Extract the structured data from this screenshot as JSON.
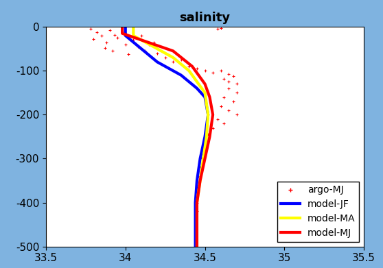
{
  "chart_data": {
    "type": "line",
    "title": "salinity",
    "xlim": [
      33.5,
      35.5
    ],
    "xticks": [
      33.5,
      34,
      34.5,
      35,
      35.5
    ],
    "ylim": [
      -500,
      0
    ],
    "yticks": [
      -500,
      -400,
      -300,
      -200,
      -100,
      0
    ],
    "grid": false,
    "legend": "lower right",
    "series": [
      {
        "name": "argo-MJ",
        "color": "#ff0000",
        "type": "scatter",
        "marker": "+",
        "x": [
          33.78,
          33.82,
          33.85,
          33.8,
          33.9,
          33.93,
          33.88,
          33.95,
          34.0,
          33.98,
          34.05,
          34.08,
          34.1,
          34.12,
          34.15,
          34.2,
          33.87,
          33.92,
          34.02,
          34.18,
          34.25,
          34.3,
          34.35,
          34.4,
          34.45,
          34.5,
          34.55,
          34.6,
          34.65,
          34.68,
          34.62,
          34.58,
          34.6,
          34.65,
          34.7,
          34.65,
          34.7,
          34.62,
          34.68,
          34.6,
          34.65,
          34.7,
          34.58,
          34.62,
          34.55,
          34.52,
          34.5,
          34.5,
          34.48,
          34.47,
          34.46,
          34.46,
          34.45,
          34.45,
          34.45,
          34.44,
          34.44,
          34.44,
          34.44
        ],
        "y": [
          -5,
          -12,
          -20,
          -28,
          -8,
          -18,
          -35,
          -25,
          -40,
          -10,
          -30,
          -45,
          -20,
          -55,
          -40,
          -60,
          -48,
          -55,
          -62,
          -35,
          -70,
          -80,
          -75,
          -90,
          -95,
          -100,
          -105,
          -100,
          -108,
          -112,
          -118,
          -5,
          -3,
          -125,
          -130,
          -140,
          -150,
          -160,
          -170,
          -180,
          -190,
          -200,
          -210,
          -220,
          -230,
          -245,
          -260,
          -280,
          -300,
          -320,
          -340,
          -360,
          -380,
          -400,
          -420,
          -440,
          -460,
          -480,
          -495
        ]
      },
      {
        "name": "model-JF",
        "color": "#0000ff",
        "type": "line",
        "line_style": "solid",
        "x": [
          34.0,
          34.0,
          34.1,
          34.2,
          34.35,
          34.45,
          34.5,
          34.52,
          34.5,
          34.47,
          34.45,
          34.44,
          34.44,
          34.44
        ],
        "y": [
          0,
          -20,
          -50,
          -80,
          -110,
          -140,
          -160,
          -200,
          -250,
          -300,
          -350,
          -400,
          -450,
          -500
        ]
      },
      {
        "name": "model-MA",
        "color": "#ffff00",
        "type": "line",
        "line_style": "solid",
        "x": [
          34.05,
          34.05,
          34.15,
          34.3,
          34.4,
          34.5,
          34.52,
          34.51,
          34.49,
          34.47,
          34.45,
          34.45,
          34.45
        ],
        "y": [
          0,
          -20,
          -40,
          -70,
          -100,
          -150,
          -200,
          -250,
          -300,
          -350,
          -400,
          -450,
          -500
        ]
      },
      {
        "name": "model-MJ",
        "color": "#ff0000",
        "type": "line",
        "line_style": "solid",
        "x": [
          33.98,
          33.98,
          34.1,
          34.3,
          34.42,
          34.5,
          34.53,
          34.55,
          34.53,
          34.5,
          34.47,
          34.45,
          34.45,
          34.45
        ],
        "y": [
          0,
          -15,
          -30,
          -55,
          -90,
          -130,
          -160,
          -200,
          -250,
          -300,
          -350,
          -400,
          -450,
          -500
        ]
      }
    ]
  }
}
